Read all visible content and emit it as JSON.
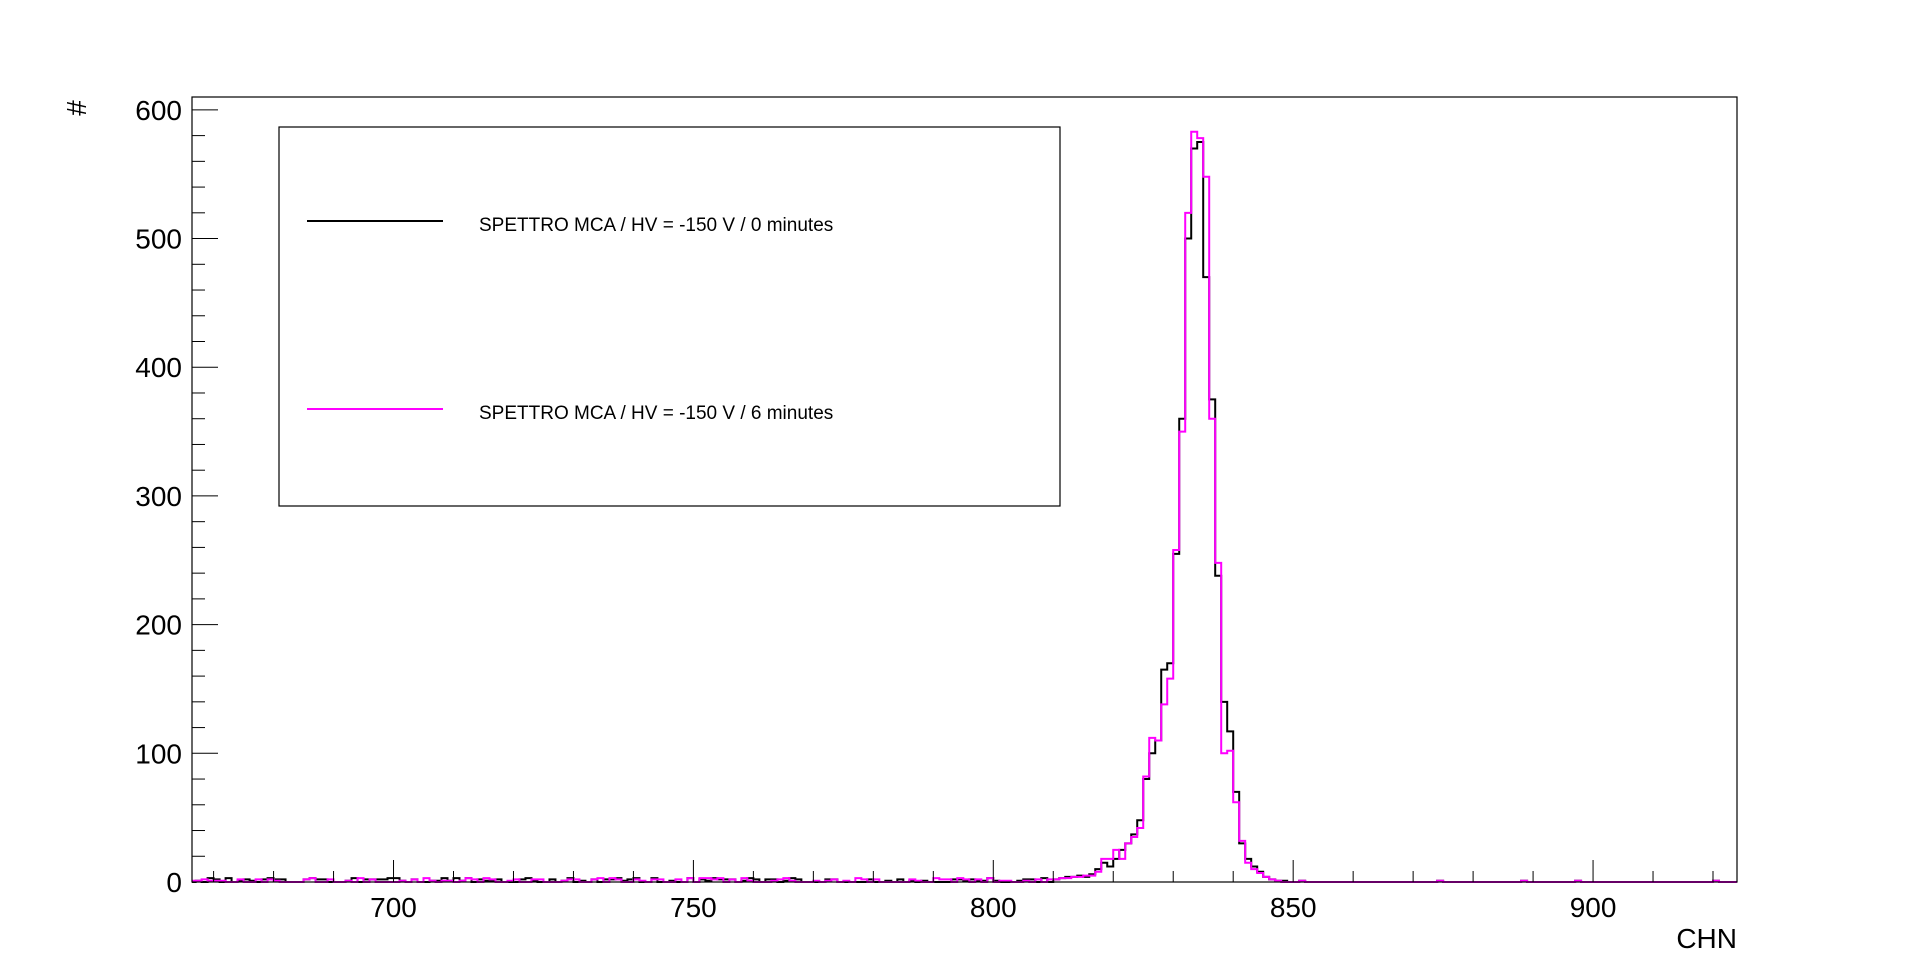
{
  "chart_data": {
    "type": "histogram-step",
    "title": "",
    "xlabel": "CHN",
    "ylabel": "#",
    "xlim": [
      666.4,
      924
    ],
    "ylim": [
      0,
      610
    ],
    "xticks": [
      700,
      750,
      800,
      850,
      900
    ],
    "yticks": [
      0,
      100,
      200,
      300,
      400,
      500,
      600
    ],
    "bin_width": 1,
    "legend": {
      "position": "top-left",
      "entries": [
        {
          "label": "SPETTRO MCA / HV = -150 V / 0 minutes",
          "color": "#000000"
        },
        {
          "label": "SPETTRO MCA / HV = -150 V / 6 minutes",
          "color": "#ff00ff"
        }
      ]
    },
    "series": [
      {
        "name": "SPETTRO MCA / HV = -150 V / 0 minutes",
        "color": "#000000",
        "x_start": 810,
        "values": [
          2,
          3,
          4,
          4,
          5,
          4,
          6,
          10,
          15,
          12,
          18,
          25,
          30,
          37,
          48,
          80,
          100,
          110,
          165,
          170,
          255,
          360,
          500,
          570,
          575,
          470,
          375,
          238,
          140,
          117,
          70,
          30,
          18,
          12,
          8,
          4,
          2,
          1,
          1,
          0,
          0
        ]
      },
      {
        "name": "SPETTRO MCA / HV = -150 V / 6 minutes",
        "color": "#ff00ff",
        "x_start": 810,
        "values": [
          2,
          3,
          3,
          4,
          4,
          5,
          5,
          8,
          18,
          18,
          25,
          18,
          30,
          35,
          42,
          82,
          112,
          110,
          138,
          158,
          258,
          350,
          520,
          583,
          578,
          548,
          360,
          248,
          100,
          102,
          62,
          32,
          15,
          10,
          7,
          4,
          2,
          1,
          0,
          0,
          0
        ]
      }
    ]
  }
}
